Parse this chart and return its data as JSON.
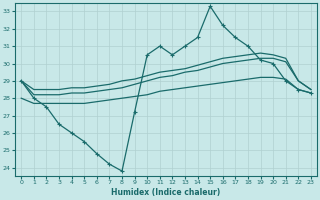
{
  "xlabel": "Humidex (Indice chaleur)",
  "xlim": [
    -0.5,
    23.5
  ],
  "ylim": [
    23.5,
    33.5
  ],
  "yticks": [
    24,
    25,
    26,
    27,
    28,
    29,
    30,
    31,
    32,
    33
  ],
  "xticks": [
    0,
    1,
    2,
    3,
    4,
    5,
    6,
    7,
    8,
    9,
    10,
    11,
    12,
    13,
    14,
    15,
    16,
    17,
    18,
    19,
    20,
    21,
    22,
    23
  ],
  "bg_color": "#c8e8e8",
  "grid_color": "#b0d0d0",
  "line_color": "#1a6b6b",
  "jagged_line": [
    29.0,
    28.0,
    27.5,
    26.5,
    26.0,
    25.5,
    24.8,
    24.2,
    23.8,
    27.2,
    30.5,
    31.0,
    30.5,
    31.0,
    31.5,
    33.3,
    32.2,
    31.5,
    31.0,
    30.2,
    30.0,
    29.0,
    28.5,
    28.3
  ],
  "smooth_upper1": [
    29.0,
    28.5,
    28.5,
    28.5,
    28.6,
    28.6,
    28.7,
    28.8,
    29.0,
    29.1,
    29.3,
    29.5,
    29.6,
    29.7,
    29.9,
    30.1,
    30.3,
    30.4,
    30.5,
    30.6,
    30.5,
    30.3,
    29.0,
    28.5
  ],
  "smooth_upper2": [
    29.0,
    28.2,
    28.2,
    28.2,
    28.3,
    28.3,
    28.4,
    28.5,
    28.6,
    28.8,
    29.0,
    29.2,
    29.3,
    29.5,
    29.6,
    29.8,
    30.0,
    30.1,
    30.2,
    30.3,
    30.3,
    30.1,
    29.0,
    28.5
  ],
  "smooth_lower": [
    28.0,
    27.7,
    27.7,
    27.7,
    27.7,
    27.7,
    27.8,
    27.9,
    28.0,
    28.1,
    28.2,
    28.4,
    28.5,
    28.6,
    28.7,
    28.8,
    28.9,
    29.0,
    29.1,
    29.2,
    29.2,
    29.1,
    28.5,
    28.3
  ]
}
